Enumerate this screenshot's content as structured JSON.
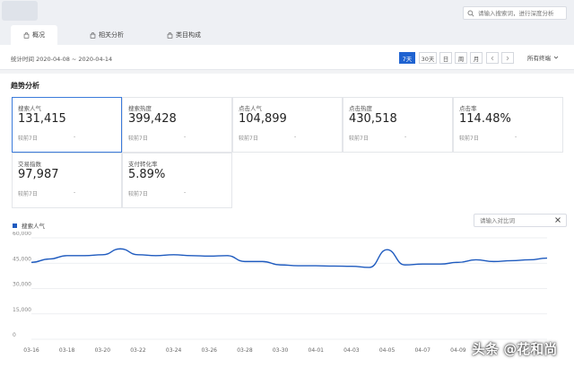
{
  "search": {
    "placeholder": "请输入搜索词，进行深度分析"
  },
  "tabs": [
    {
      "label": "概况",
      "active": true,
      "icon": "bag-icon"
    },
    {
      "label": "相关分析",
      "active": false,
      "icon": "bag-icon"
    },
    {
      "label": "类目构成",
      "active": false,
      "icon": "bag-icon"
    }
  ],
  "date_bar": {
    "stat_time": "统计时间 2020-04-08 ~ 2020-04-14",
    "periods": [
      "7天",
      "30天",
      "日",
      "周",
      "月"
    ],
    "active_period": "7天",
    "terminal_select": "所有终端"
  },
  "panel": {
    "title": "趋势分析"
  },
  "metrics": [
    {
      "label": "搜索人气",
      "value": "131,415",
      "compare": "较前7日",
      "change": "-",
      "active": true
    },
    {
      "label": "搜索热度",
      "value": "399,428",
      "compare": "较前7日",
      "change": "-",
      "active": false
    },
    {
      "label": "点击人气",
      "value": "104,899",
      "compare": "较前7日",
      "change": "-",
      "active": false
    },
    {
      "label": "点击热度",
      "value": "430,518",
      "compare": "较前7日",
      "change": "-",
      "active": false
    },
    {
      "label": "点击率",
      "value": "114.48%",
      "compare": "较前7日",
      "change": "-",
      "active": false
    },
    {
      "label": "交易指数",
      "value": "97,987",
      "compare": "较前7日",
      "change": "-",
      "active": false
    },
    {
      "label": "支付转化率",
      "value": "5.89%",
      "compare": "较前7日",
      "change": "-",
      "active": false
    }
  ],
  "compare_input": {
    "placeholder": "请输入对比词"
  },
  "watermark": "头条 @花和尚",
  "colors": {
    "accent": "#1f63d1",
    "line": "#1f5bbf",
    "grid": "#e8eaee"
  },
  "chart_data": {
    "type": "line",
    "series": [
      {
        "name": "搜索人气",
        "values": [
          45500,
          47500,
          49500,
          49500,
          50000,
          53500,
          50000,
          49500,
          50000,
          49500,
          49200,
          49500,
          46000,
          46000,
          44000,
          43500,
          43500,
          43300,
          43200,
          42500,
          53000,
          44000,
          44500,
          44500,
          45500,
          47000,
          46000,
          46500,
          47000,
          48000
        ]
      }
    ],
    "categories": [
      "03-16",
      "03-17",
      "03-18",
      "03-19",
      "03-20",
      "03-21",
      "03-22",
      "03-23",
      "03-24",
      "03-25",
      "03-26",
      "03-27",
      "03-28",
      "03-29",
      "03-30",
      "03-31",
      "04-01",
      "04-02",
      "04-03",
      "04-04",
      "04-05",
      "04-06",
      "04-07",
      "04-08",
      "04-09",
      "04-10",
      "04-11",
      "04-12",
      "04-13",
      "04-14"
    ],
    "x_tick_labels": [
      "03-16",
      "03-18",
      "03-20",
      "03-22",
      "03-24",
      "03-26",
      "03-28",
      "03-30",
      "04-01",
      "04-03",
      "04-05",
      "04-07",
      "04-09"
    ],
    "y_tick_labels": [
      "60,000",
      "45,000",
      "30,000",
      "15,000",
      "0"
    ],
    "ylim": [
      0,
      60000
    ],
    "grid": true,
    "title": "",
    "xlabel": "",
    "ylabel": ""
  }
}
